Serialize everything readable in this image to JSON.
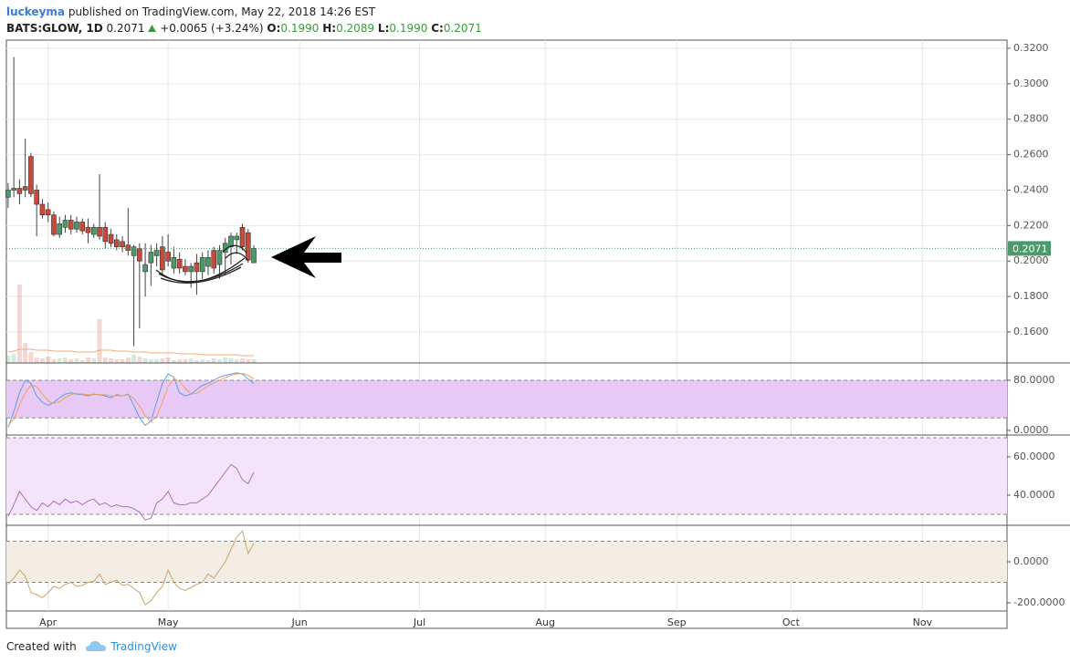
{
  "header": {
    "author": "luckeyma",
    "published": "published on TradingView.com, May 22, 2018 14:26 EST"
  },
  "legend": {
    "symbol": "BATS:GLOW, 1D",
    "last": "0.2071",
    "change": "+0.0065 (+3.24%)",
    "open_label": "O:",
    "open": "0.1990",
    "high_label": "H:",
    "high": "0.2089",
    "low_label": "L:",
    "low": "0.1990",
    "close_label": "C:",
    "close": "0.2071"
  },
  "footer": {
    "created": "Created with",
    "brand": "TradingView"
  },
  "chart_data": [
    {
      "type": "candlestick",
      "open": [
        0.236,
        0.24,
        0.241,
        0.242,
        0.259,
        0.24,
        0.232,
        0.229,
        0.226,
        0.215,
        0.219,
        0.223,
        0.218,
        0.222,
        0.219,
        0.215,
        0.219,
        0.219,
        0.215,
        0.212,
        0.211,
        0.209,
        0.203,
        0.207,
        0.194,
        0.199,
        0.203,
        0.208,
        0.205,
        0.196,
        0.201,
        0.197,
        0.194,
        0.199,
        0.194,
        0.197,
        0.206,
        0.198,
        0.205,
        0.208,
        0.212,
        0.219,
        0.216,
        0.199
      ],
      "high": [
        0.244,
        0.315,
        0.246,
        0.269,
        0.261,
        0.243,
        0.235,
        0.233,
        0.228,
        0.225,
        0.226,
        0.226,
        0.225,
        0.224,
        0.224,
        0.221,
        0.249,
        0.222,
        0.218,
        0.215,
        0.214,
        0.23,
        0.209,
        0.21,
        0.21,
        0.209,
        0.21,
        0.214,
        0.215,
        0.208,
        0.205,
        0.201,
        0.199,
        0.204,
        0.205,
        0.206,
        0.208,
        0.209,
        0.213,
        0.216,
        0.216,
        0.221,
        0.218,
        0.2089
      ],
      "low": [
        0.23,
        0.236,
        0.232,
        0.236,
        0.236,
        0.214,
        0.224,
        0.222,
        0.214,
        0.213,
        0.216,
        0.215,
        0.216,
        0.215,
        0.21,
        0.213,
        0.212,
        0.207,
        0.208,
        0.206,
        0.205,
        0.203,
        0.152,
        0.162,
        0.18,
        0.186,
        0.197,
        0.192,
        0.197,
        0.193,
        0.193,
        0.192,
        0.185,
        0.181,
        0.19,
        0.192,
        0.193,
        0.19,
        0.192,
        0.198,
        0.204,
        0.206,
        0.199,
        0.199
      ],
      "close": [
        0.24,
        0.241,
        0.238,
        0.24,
        0.238,
        0.232,
        0.226,
        0.226,
        0.215,
        0.221,
        0.223,
        0.218,
        0.222,
        0.217,
        0.216,
        0.219,
        0.214,
        0.211,
        0.21,
        0.208,
        0.208,
        0.206,
        0.208,
        0.2,
        0.198,
        0.205,
        0.206,
        0.195,
        0.2,
        0.202,
        0.196,
        0.194,
        0.197,
        0.194,
        0.202,
        0.202,
        0.196,
        0.206,
        0.21,
        0.214,
        0.214,
        0.208,
        0.2006,
        0.2071
      ],
      "volume": [
        8,
        10,
        86,
        22,
        12,
        6,
        5,
        7,
        4,
        5,
        6,
        4,
        5,
        3,
        6,
        5,
        48,
        6,
        5,
        4,
        4,
        6,
        9,
        7,
        5,
        4,
        4,
        5,
        6,
        3,
        4,
        4,
        5,
        3,
        4,
        3,
        5,
        4,
        6,
        5,
        4,
        5,
        4,
        4
      ],
      "volume_ma": [
        12,
        13,
        15,
        15,
        15,
        14,
        14,
        14,
        13,
        13,
        13,
        13,
        12,
        12,
        12,
        12,
        14,
        14,
        14,
        13,
        13,
        13,
        12,
        12,
        12,
        11,
        11,
        11,
        11,
        11,
        10,
        10,
        10,
        10,
        9,
        9,
        9,
        9,
        9,
        9,
        9,
        8,
        8,
        8
      ],
      "up_color": "#4a9a6a",
      "down_color": "#c94a3b",
      "volume_ma_color": "#f5a872",
      "xlim": [
        -0.3,
        174.8
      ],
      "xticks": [
        {
          "value": 7,
          "label": "Apr"
        },
        {
          "value": 28,
          "label": "May"
        },
        {
          "value": 51,
          "label": "Jun"
        },
        {
          "value": 72,
          "label": "Jul"
        },
        {
          "value": 94,
          "label": "Aug"
        },
        {
          "value": 117,
          "label": "Sep"
        },
        {
          "value": 137,
          "label": "Oct"
        },
        {
          "value": 160,
          "label": "Nov"
        }
      ],
      "ylim": [
        0.1425,
        0.3246
      ],
      "yticks": [
        {
          "value": 0.16,
          "label": "0.1600"
        },
        {
          "value": 0.18,
          "label": "0.1800"
        },
        {
          "value": 0.2,
          "label": "0.2000"
        },
        {
          "value": 0.22,
          "label": "0.2200"
        },
        {
          "value": 0.24,
          "label": "0.2400"
        },
        {
          "value": 0.26,
          "label": "0.2600"
        },
        {
          "value": 0.28,
          "label": "0.2800"
        },
        {
          "value": 0.3,
          "label": "0.3000"
        },
        {
          "value": 0.32,
          "label": "0.3200"
        }
      ],
      "last_price": {
        "value": 0.2071,
        "label": "0.2071"
      },
      "grid": true
    },
    {
      "type": "line",
      "series": [
        {
          "color": "#5b9ee6",
          "values": [
            5,
            30,
            60,
            80,
            75,
            55,
            45,
            40,
            45,
            52,
            58,
            60,
            58,
            57,
            55,
            58,
            57,
            55,
            52,
            57,
            55,
            58,
            40,
            20,
            8,
            15,
            45,
            75,
            90,
            85,
            60,
            55,
            58,
            65,
            72,
            75,
            80,
            85,
            88,
            90,
            92,
            90,
            82,
            75
          ]
        },
        {
          "color": "#f0a060",
          "values": [
            8,
            18,
            40,
            60,
            72,
            70,
            58,
            47,
            43,
            46,
            52,
            57,
            59,
            58,
            57,
            57,
            57,
            57,
            55,
            55,
            55,
            57,
            51,
            39,
            23,
            14,
            23,
            45,
            70,
            83,
            78,
            67,
            58,
            59,
            65,
            71,
            76,
            80,
            84,
            88,
            90,
            91,
            88,
            82
          ]
        }
      ],
      "bands": [
        20,
        80
      ],
      "band_color": "#e8c9f6",
      "ylim": [
        -7.3,
        107.6
      ],
      "yticks": [
        {
          "value": 0,
          "label": "0.0000"
        },
        {
          "value": 80,
          "label": "80.0000"
        }
      ]
    },
    {
      "type": "line",
      "series": [
        {
          "color": "#b070b8",
          "values": [
            29,
            35,
            42,
            38,
            34,
            32,
            36,
            34,
            37,
            35,
            38,
            36,
            37,
            35,
            37,
            38,
            35,
            36,
            34,
            35,
            34,
            34,
            33,
            31,
            27,
            28,
            36,
            38,
            42,
            36,
            35,
            35,
            36,
            36,
            38,
            40,
            44,
            48,
            52,
            56,
            54,
            48,
            46,
            52
          ]
        }
      ],
      "bands": [
        30,
        70
      ],
      "band_color": "#f4e4fb",
      "ylim": [
        24.3,
        71.4
      ],
      "yticks": [
        {
          "value": 40,
          "label": "40.0000"
        },
        {
          "value": 60,
          "label": "60.0000"
        }
      ]
    },
    {
      "type": "line",
      "series": [
        {
          "color": "#caa56c",
          "values": [
            -110,
            -80,
            -40,
            -70,
            -150,
            -160,
            -175,
            -150,
            -120,
            -130,
            -110,
            -100,
            -120,
            -115,
            -100,
            -95,
            -60,
            -110,
            -100,
            -90,
            -115,
            -110,
            -130,
            -150,
            -210,
            -190,
            -150,
            -120,
            -40,
            -100,
            -130,
            -140,
            -125,
            -110,
            -100,
            -60,
            -80,
            -40,
            0,
            60,
            120,
            150,
            40,
            90
          ]
        }
      ],
      "bands": [
        -100,
        100
      ],
      "band_color": "#f4ede3",
      "ylim": [
        -240,
        177.8
      ],
      "yticks": [
        {
          "value": -200,
          "label": "-200.0000"
        },
        {
          "value": 0,
          "label": "0.0000"
        }
      ]
    }
  ]
}
